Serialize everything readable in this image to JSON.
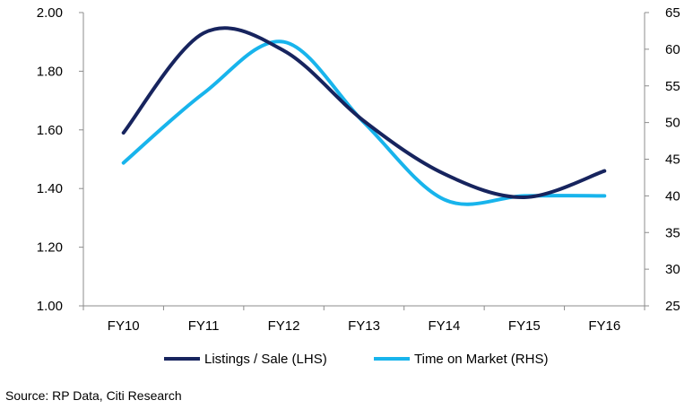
{
  "chart_data": {
    "type": "line",
    "categories": [
      "FY10",
      "FY11",
      "FY12",
      "FY13",
      "FY14",
      "FY15",
      "FY16"
    ],
    "y_left": {
      "min": 1.0,
      "max": 2.0,
      "ticks": [
        "1.00",
        "1.20",
        "1.40",
        "1.60",
        "1.80",
        "2.00"
      ]
    },
    "y_right": {
      "min": 25,
      "max": 65,
      "ticks": [
        "25",
        "30",
        "35",
        "40",
        "45",
        "50",
        "55",
        "60",
        "65"
      ]
    },
    "series": [
      {
        "name": "Listings / Sale (LHS)",
        "axis": "left",
        "color": "#17245e",
        "values": [
          1.59,
          1.93,
          1.87,
          1.63,
          1.45,
          1.37,
          1.46
        ]
      },
      {
        "name": "Time on Market (RHS)",
        "axis": "right",
        "color": "#18b4ec",
        "values": [
          44.5,
          54.0,
          61.0,
          50.0,
          39.5,
          40.0,
          40.0
        ]
      }
    ],
    "grid": false,
    "legend_position": "bottom"
  },
  "source": "Source: RP Data, Citi Research"
}
